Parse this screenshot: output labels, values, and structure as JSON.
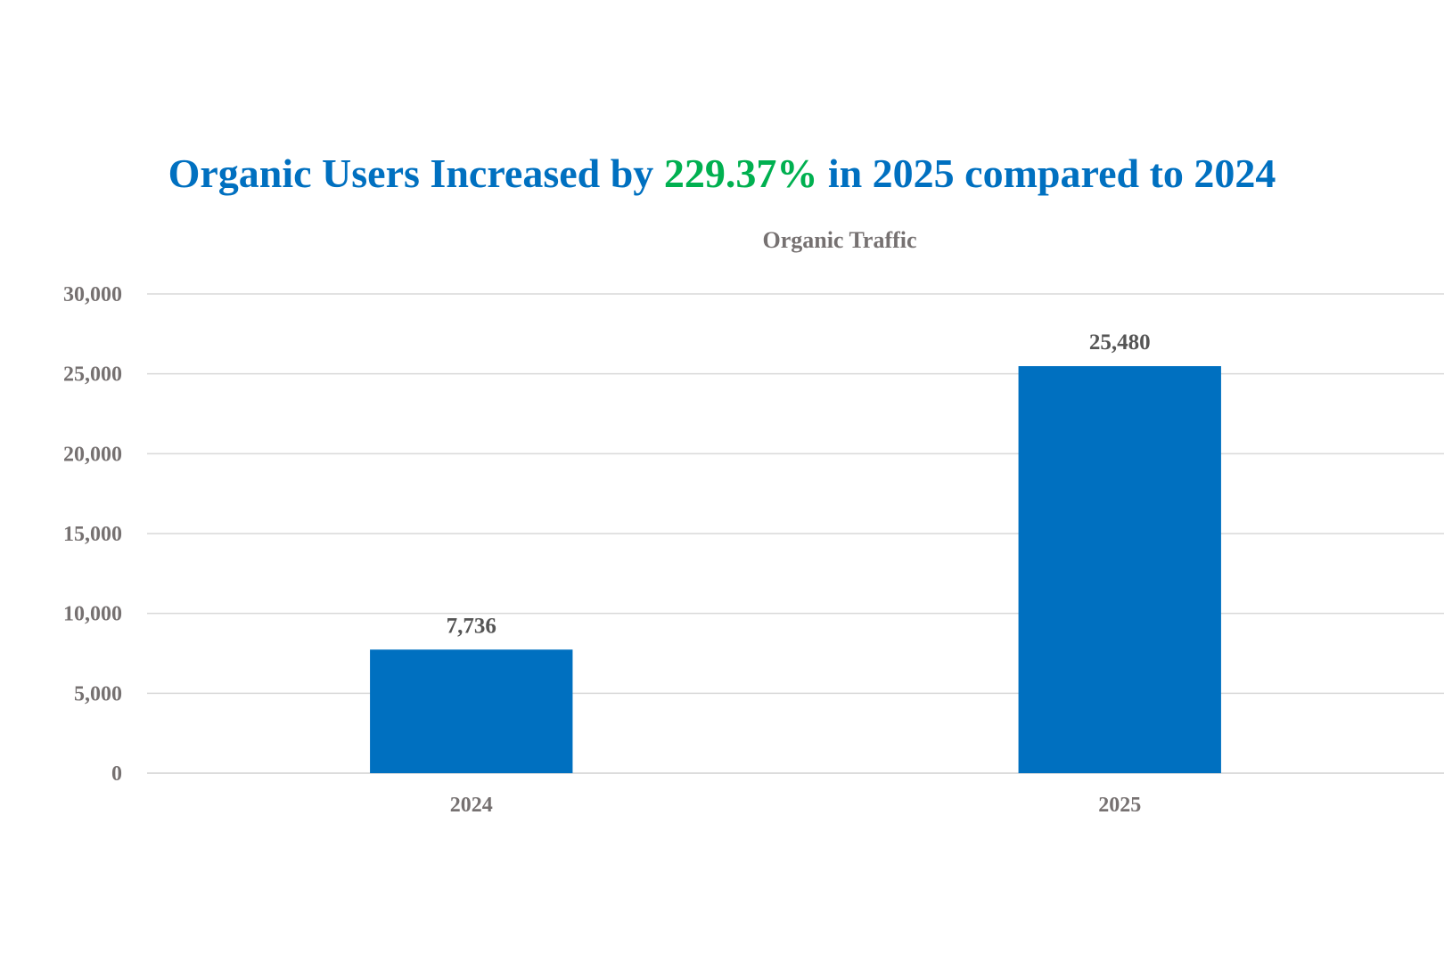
{
  "headline": {
    "prefix": "Organic Users Increased by ",
    "highlight": "229.37%",
    "suffix": " in 2025 compared to 2024"
  },
  "colors": {
    "headline": "#0070C0",
    "highlight": "#00B050",
    "bar": "#0070C0",
    "grid": "#D9D9D9",
    "tick_text": "#767171"
  },
  "chart_data": {
    "type": "bar",
    "title": "Organic Traffic",
    "categories": [
      "2024",
      "2025"
    ],
    "values": [
      7736,
      25480
    ],
    "data_labels": [
      "7,736",
      "25,480"
    ],
    "yticks": [
      0,
      5000,
      10000,
      15000,
      20000,
      25000,
      30000
    ],
    "ytick_labels": [
      "0",
      "5,000",
      "10,000",
      "15,000",
      "20,000",
      "25,000",
      "30,000"
    ],
    "ylim": [
      0,
      30000
    ],
    "xlabel": "",
    "ylabel": "",
    "grid": true,
    "legend": "none"
  }
}
